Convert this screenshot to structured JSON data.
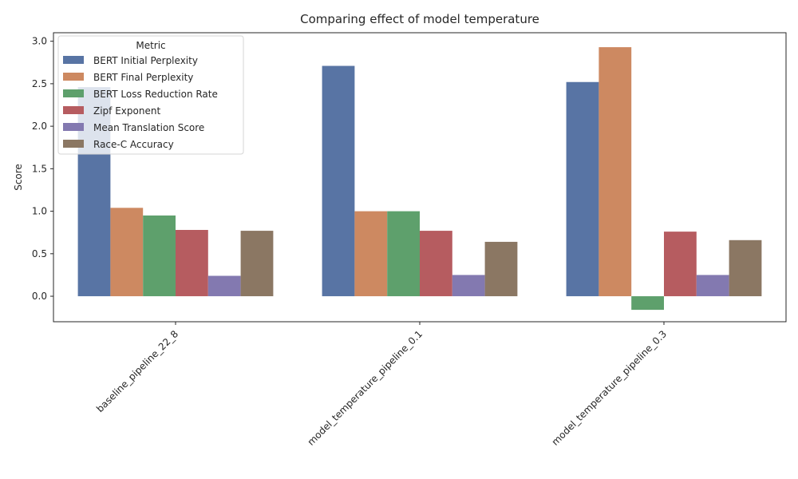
{
  "chart_data": {
    "type": "bar",
    "title": "Comparing effect of model temperature",
    "xlabel": "",
    "ylabel": "Score",
    "ylim": [
      -0.3,
      3.1
    ],
    "yticks": [
      "3.0",
      "2.5",
      "2.0",
      "1.5",
      "1.0",
      "0.5",
      "0.0"
    ],
    "categories": [
      "baseline_pipeline_22_8",
      "model_temperature_pipeline_0.1",
      "model_temperature_pipeline_0.3"
    ],
    "legend": {
      "title": "Metric",
      "placement": "top-left"
    },
    "grid": false,
    "series": [
      {
        "name": "BERT Initial Perplexity",
        "color": "#5874a4",
        "values": [
          2.46,
          2.71,
          2.52
        ]
      },
      {
        "name": "BERT Final Perplexity",
        "color": "#cd8961",
        "values": [
          1.04,
          1.0,
          2.93
        ]
      },
      {
        "name": "BERT Loss Reduction Rate",
        "color": "#5ea06c",
        "values": [
          0.95,
          1.0,
          -0.16
        ]
      },
      {
        "name": "Zipf Exponent",
        "color": "#b65c60",
        "values": [
          0.78,
          0.77,
          0.76
        ]
      },
      {
        "name": "Mean Translation Score",
        "color": "#8379b0",
        "values": [
          0.24,
          0.25,
          0.25
        ]
      },
      {
        "name": "Race-C Accuracy",
        "color": "#8b7763",
        "values": [
          0.77,
          0.64,
          0.66
        ]
      }
    ]
  }
}
